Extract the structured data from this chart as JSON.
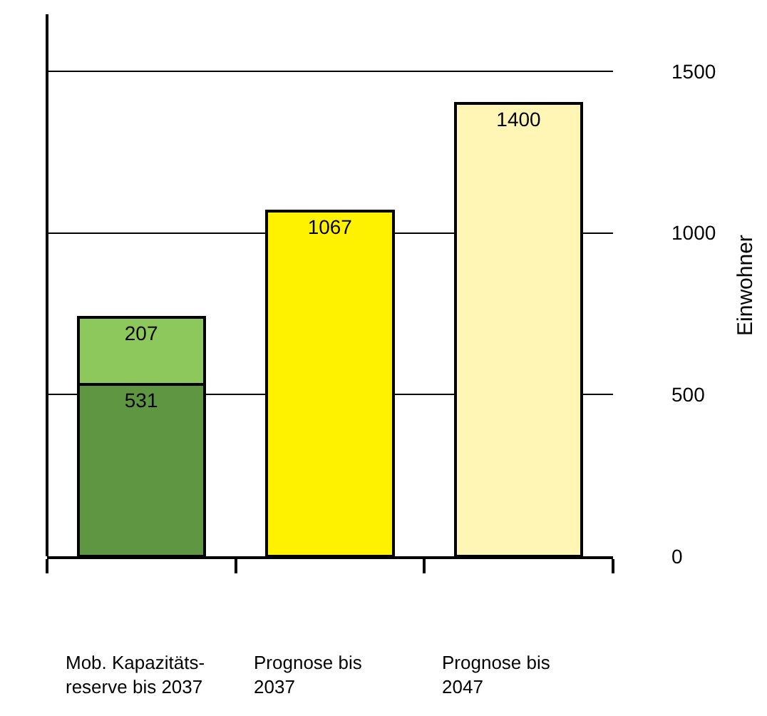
{
  "chart_data": {
    "type": "bar",
    "stacked": true,
    "ylabel": "Einwohner",
    "categories": [
      "Mob. Kapazitäts-\nreserve bis 2037",
      "Prognose bis\n2037",
      "Prognose bis\n2047"
    ],
    "series": [
      {
        "colors": [
          "#5f9641",
          "#fff200",
          "#fff5b4"
        ],
        "values": [
          531,
          1067,
          1400
        ]
      },
      {
        "color": "#8cc85c",
        "values": [
          207,
          null,
          null
        ]
      }
    ],
    "data_labels": true,
    "ylim": [
      0,
      1676
    ],
    "yticks": [
      0,
      500,
      1000,
      1500
    ],
    "grid": "y",
    "legend": false
  }
}
